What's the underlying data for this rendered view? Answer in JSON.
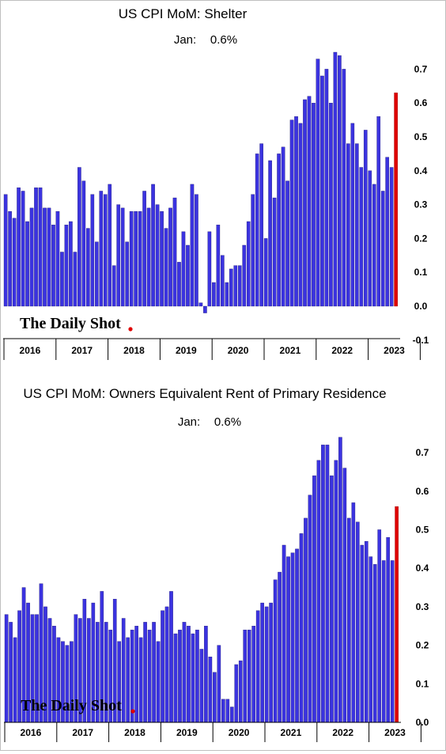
{
  "chart_data": [
    {
      "type": "bar",
      "title": "US CPI MoM: Shelter",
      "subtitle_label": "Jan:",
      "subtitle_value": "0.6%",
      "watermark": "The Daily Shot",
      "ylim": [
        -0.1,
        0.78
      ],
      "yticks": [
        "0.7",
        "0.6",
        "0.5",
        "0.4",
        "0.3",
        "0.2",
        "0.1",
        "0.0",
        "-0.1"
      ],
      "ytick_values": [
        0.7,
        0.6,
        0.5,
        0.4,
        0.3,
        0.2,
        0.1,
        0.0,
        -0.1
      ],
      "year_labels": [
        "2016",
        "2017",
        "2018",
        "2019",
        "2020",
        "2021",
        "2022",
        "2023"
      ],
      "values": [
        0.33,
        0.28,
        0.26,
        0.35,
        0.34,
        0.25,
        0.29,
        0.35,
        0.35,
        0.29,
        0.29,
        0.24,
        0.28,
        0.16,
        0.24,
        0.25,
        0.16,
        0.41,
        0.37,
        0.23,
        0.33,
        0.19,
        0.34,
        0.33,
        0.36,
        0.12,
        0.3,
        0.29,
        0.19,
        0.28,
        0.28,
        0.28,
        0.34,
        0.29,
        0.36,
        0.3,
        0.28,
        0.23,
        0.29,
        0.32,
        0.13,
        0.22,
        0.18,
        0.36,
        0.33,
        0.01,
        -0.02,
        0.22,
        0.07,
        0.24,
        0.15,
        0.07,
        0.11,
        0.12,
        0.12,
        0.18,
        0.25,
        0.33,
        0.45,
        0.48,
        0.2,
        0.43,
        0.32,
        0.45,
        0.47,
        0.37,
        0.55,
        0.56,
        0.54,
        0.61,
        0.62,
        0.6,
        0.73,
        0.68,
        0.7,
        0.6,
        0.75,
        0.74,
        0.7,
        0.48,
        0.54,
        0.48,
        0.41,
        0.52,
        0.4,
        0.36,
        0.56,
        0.34,
        0.44,
        0.41,
        0.63
      ],
      "highlight_last": true,
      "bar_color": "#3b33e0",
      "highlight_color": "#e00000"
    },
    {
      "type": "bar",
      "title": "US CPI MoM: Owners Equivalent Rent of Primary Residence",
      "subtitle_label": "Jan:",
      "subtitle_value": "0.6%",
      "watermark": "The Daily Shot",
      "ylim": [
        0.0,
        0.78
      ],
      "yticks": [
        "0.7",
        "0.6",
        "0.5",
        "0.4",
        "0.3",
        "0.2",
        "0.1",
        "0.0"
      ],
      "ytick_values": [
        0.7,
        0.6,
        0.5,
        0.4,
        0.3,
        0.2,
        0.1,
        0.0
      ],
      "year_labels": [
        "2016",
        "2017",
        "2018",
        "2019",
        "2020",
        "2021",
        "2022",
        "2023"
      ],
      "values": [
        0.28,
        0.26,
        0.22,
        0.29,
        0.35,
        0.31,
        0.28,
        0.28,
        0.36,
        0.3,
        0.27,
        0.25,
        0.22,
        0.21,
        0.2,
        0.21,
        0.28,
        0.27,
        0.32,
        0.27,
        0.31,
        0.26,
        0.34,
        0.26,
        0.24,
        0.32,
        0.21,
        0.27,
        0.22,
        0.24,
        0.25,
        0.22,
        0.26,
        0.24,
        0.26,
        0.21,
        0.29,
        0.3,
        0.34,
        0.23,
        0.24,
        0.26,
        0.25,
        0.23,
        0.24,
        0.19,
        0.25,
        0.17,
        0.13,
        0.2,
        0.06,
        0.06,
        0.04,
        0.15,
        0.16,
        0.24,
        0.24,
        0.25,
        0.29,
        0.31,
        0.3,
        0.31,
        0.37,
        0.39,
        0.46,
        0.43,
        0.44,
        0.45,
        0.49,
        0.53,
        0.59,
        0.64,
        0.68,
        0.72,
        0.72,
        0.64,
        0.68,
        0.74,
        0.66,
        0.53,
        0.57,
        0.52,
        0.46,
        0.47,
        0.43,
        0.41,
        0.5,
        0.42,
        0.48,
        0.42,
        0.56
      ],
      "highlight_last": true,
      "bar_color": "#3b33e0",
      "highlight_color": "#e00000"
    }
  ]
}
